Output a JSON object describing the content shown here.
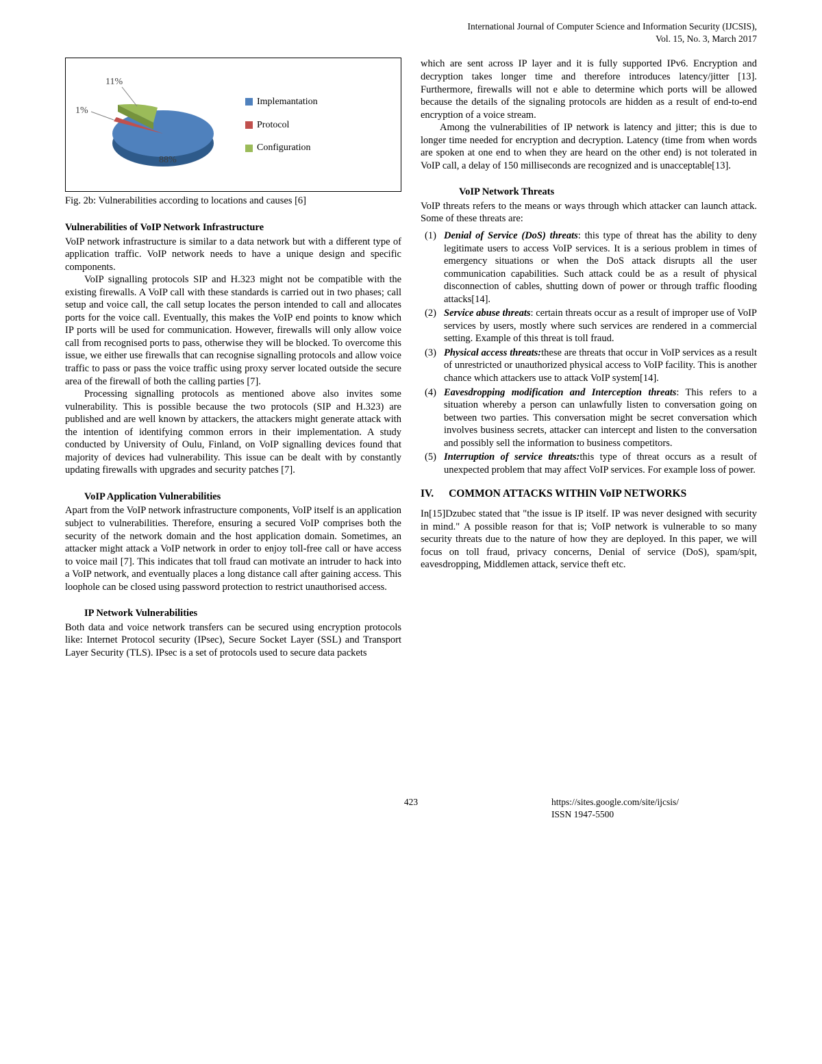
{
  "header": {
    "journal": "International Journal of Computer Science and Information Security (IJCSIS),",
    "issue": "Vol. 15, No. 3, March 2017"
  },
  "pie_chart": {
    "type": "pie",
    "slices": [
      {
        "label": "Implemantation",
        "value": 88,
        "color": "#4f81bd"
      },
      {
        "label": "Protocol",
        "value": 1,
        "color": "#c0504d"
      },
      {
        "label": "Configuration",
        "value": 11,
        "color": "#9bbb59"
      }
    ],
    "percent_labels": {
      "impl": "88%",
      "proto": "1%",
      "config": "11%"
    },
    "label_color": "#404040",
    "legend_marker": "■",
    "border_color": "#000000",
    "background_color": "#ffffff",
    "font_size": 14,
    "tilt": "3d-oblique"
  },
  "figure_caption": "Fig. 2b: Vulnerabilities according to locations and causes [6]",
  "left": {
    "h1": "Vulnerabilities of VoIP Network Infrastructure",
    "p1": "VoIP network infrastructure is similar to a data network but with a different type of application traffic. VoIP network needs to have a unique design and specific components.",
    "p2": "VoIP signalling protocols SIP and H.323 might not be compatible with the existing firewalls. A VoIP call with these standards is carried out in two phases; call setup and voice call, the call setup locates the person intended to call and allocates ports for the voice call. Eventually, this makes the VoIP end points to know which IP ports will be used for communication. However, firewalls will only allow voice call from recognised ports to pass, otherwise they will be blocked. To overcome this issue, we either use firewalls that can recognise signalling protocols and allow voice traffic to pass or pass the voice traffic using proxy server located outside the secure area of the firewall of both the calling parties [7].",
    "p3": "Processing signalling protocols as mentioned above also invites some vulnerability. This is possible because the two protocols (SIP and H.323) are published and are well known by attackers, the attackers might generate attack with the intention of identifying common errors in their implementation. A study conducted by University of Oulu, Finland, on VoIP signalling devices found that majority of devices had vulnerability. This issue can be dealt with by constantly updating firewalls with upgrades and security patches [7].",
    "h2": "VoIP Application Vulnerabilities",
    "p4": "Apart from the VoIP network infrastructure components, VoIP itself is an application subject to vulnerabilities. Therefore, ensuring a secured VoIP comprises both the security of the network domain and the host application domain. Sometimes, an attacker might attack a VoIP network in order to enjoy toll-free call or have access to voice mail [7]. This indicates that toll fraud can motivate an intruder to hack into a VoIP network, and eventually places a long distance call after gaining access. This loophole can be closed using password protection to restrict unauthorised access.",
    "h3": "IP Network Vulnerabilities",
    "p5": "Both data and voice network transfers can be secured using encryption protocols like: Internet Protocol security (IPsec), Secure Socket Layer (SSL) and Transport Layer Security (TLS). IPsec is a set of protocols used to secure data packets"
  },
  "right": {
    "p1": "which are sent across IP layer and it is fully supported IPv6. Encryption and decryption takes longer time and therefore introduces latency/jitter [13]. Furthermore, firewalls will not e able to determine which ports will be allowed because the details of the signaling protocols are hidden as a result of end-to-end encryption of a voice stream.",
    "p2": "Among the vulnerabilities of IP network is latency and jitter; this is due to longer time needed for encryption and decryption. Latency (time from when words are spoken at one end to when they are heard on the other end) is not tolerated in VoIP call, a delay of 150 milliseconds are recognized and is unacceptable[13].",
    "h1": "VoIP Network Threats",
    "p3": "VoIP threats refers to the means or ways through which attacker can launch attack. Some of these threats are:",
    "threats": [
      {
        "num": "(1)",
        "title": "Denial of Service (DoS) threats",
        "sep": ": ",
        "body": "this type of threat has the ability to deny legitimate users to access VoIP services. It is a serious problem in times of emergency situations or when the DoS attack disrupts all the user communication capabilities. Such attack could be as a result of physical disconnection of cables, shutting down of power or through traffic flooding attacks[14]."
      },
      {
        "num": "(2)",
        "title": "Service abuse threats",
        "sep": ": ",
        "body": "certain threats occur as a result of improper use of VoIP services by users, mostly where such services are rendered in a commercial setting. Example of this threat is toll fraud."
      },
      {
        "num": "(3)",
        "title": "Physical access threats:",
        "sep": "",
        "body": "these are threats that occur in VoIP services as a result of unrestricted or unauthorized physical access to VoIP facility. This is another chance which attackers use to attack VoIP system[14]."
      },
      {
        "num": "(4)",
        "title": "Eavesdropping modification and Interception threats",
        "sep": ": ",
        "body": "This refers to a situation whereby a person can unlawfully listen to conversation going on between two parties. This conversation might be secret conversation which involves business secrets, attacker can intercept and listen to the conversation and possibly sell the information to business competitors."
      },
      {
        "num": "(5)",
        "title": "Interruption of service threats:",
        "sep": "",
        "body": "this type of threat occurs as a result of unexpected problem that may affect VoIP services. For example loss of power."
      }
    ],
    "section_num": "IV.",
    "section_title": "COMMON ATTACKS WITHIN VoIP NETWORKS",
    "p4": "In[15]Dzubec stated that \"the issue is IP itself. IP was never designed with security in mind.\" A possible reason for that is; VoIP network is vulnerable to so many security threats due to the nature of how they are deployed.  In this paper, we will focus on toll fraud, privacy concerns, Denial of service (DoS), spam/spit, eavesdropping, Middlemen attack, service theft etc."
  },
  "footer": {
    "page": "423",
    "url": "https://sites.google.com/site/ijcsis/",
    "issn": "ISSN 1947-5500"
  }
}
